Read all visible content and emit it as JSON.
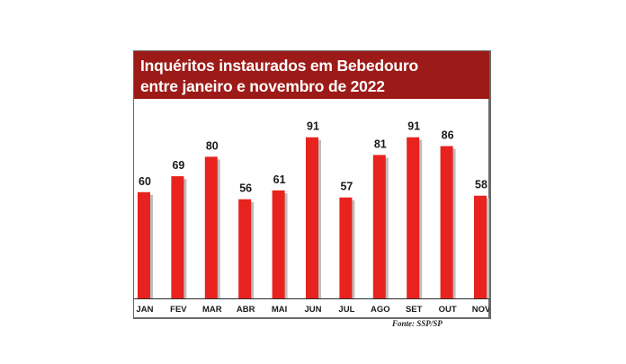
{
  "title_lines": [
    "Inquéritos instaurados em Bebedouro",
    "entre janeiro e novembro de 2022"
  ],
  "source": "Fonte: SSP/SP",
  "colors": {
    "header": "#9c1b18",
    "bar": "#e8231f",
    "bar_shadow": "#bdbdbd"
  },
  "chart_data": {
    "type": "bar",
    "title": "Inquéritos instaurados em Bebedouro entre janeiro e novembro de 2022",
    "categories": [
      "JAN",
      "FEV",
      "MAR",
      "ABR",
      "MAI",
      "JUN",
      "JUL",
      "AGO",
      "SET",
      "OUT",
      "NOV"
    ],
    "values": [
      60,
      69,
      80,
      56,
      61,
      91,
      57,
      81,
      91,
      86,
      58
    ],
    "ylim": [
      0,
      100
    ],
    "grid": false,
    "data_labels": true
  }
}
